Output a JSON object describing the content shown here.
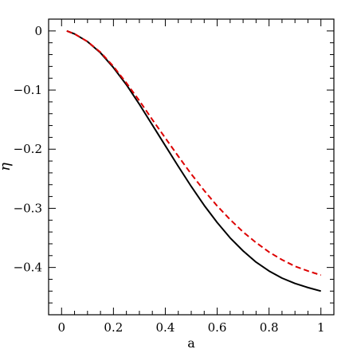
{
  "chart_data": {
    "type": "line",
    "xlabel": "a",
    "ylabel": "η",
    "xlim": [
      -0.05,
      1.05
    ],
    "ylim": [
      -0.48,
      0.02
    ],
    "x_ticks": [
      0,
      0.2,
      0.4,
      0.6,
      0.8,
      1
    ],
    "x_tick_labels": [
      "0",
      "0.2",
      "0.4",
      "0.6",
      "0.8",
      "1"
    ],
    "y_ticks": [
      0,
      -0.1,
      -0.2,
      -0.3,
      -0.4
    ],
    "y_tick_labels": [
      "0",
      "−0.1",
      "−0.2",
      "−0.3",
      "−0.4"
    ],
    "x_minor_step": 0.05,
    "y_minor_step": 0.02,
    "grid": false,
    "series": [
      {
        "color": "#000000",
        "style": "solid",
        "x": [
          0.02,
          0.05,
          0.1,
          0.15,
          0.2,
          0.25,
          0.3,
          0.35,
          0.4,
          0.45,
          0.5,
          0.55,
          0.6,
          0.65,
          0.7,
          0.75,
          0.8,
          0.85,
          0.9,
          0.95,
          1.0
        ],
        "y": [
          0.0,
          -0.005,
          -0.018,
          -0.037,
          -0.062,
          -0.091,
          -0.124,
          -0.159,
          -0.194,
          -0.229,
          -0.263,
          -0.295,
          -0.324,
          -0.35,
          -0.372,
          -0.391,
          -0.406,
          -0.418,
          -0.427,
          -0.434,
          -0.44
        ]
      },
      {
        "color": "#dd0000",
        "style": "dashed",
        "x": [
          0.02,
          0.05,
          0.1,
          0.15,
          0.2,
          0.25,
          0.3,
          0.35,
          0.4,
          0.45,
          0.5,
          0.55,
          0.6,
          0.65,
          0.7,
          0.75,
          0.8,
          0.85,
          0.9,
          0.95,
          1.0
        ],
        "y": [
          0.0,
          -0.005,
          -0.018,
          -0.036,
          -0.06,
          -0.088,
          -0.118,
          -0.15,
          -0.181,
          -0.212,
          -0.242,
          -0.27,
          -0.296,
          -0.319,
          -0.34,
          -0.358,
          -0.374,
          -0.387,
          -0.398,
          -0.406,
          -0.413
        ]
      }
    ]
  }
}
